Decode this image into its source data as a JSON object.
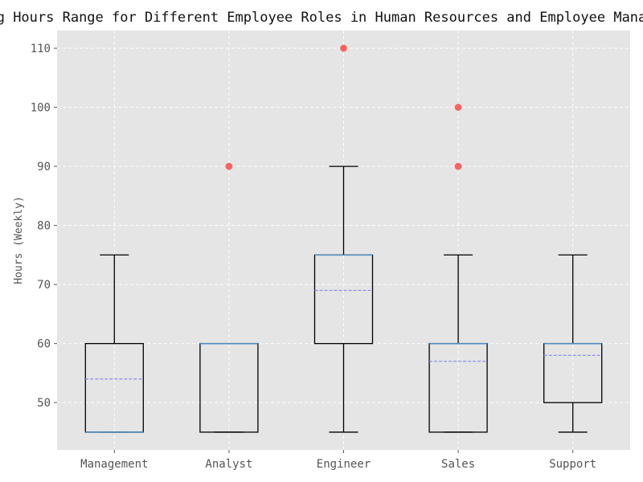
{
  "chart_data": {
    "type": "box",
    "title": "Working Hours Range for Different Employee Roles in Human Resources and Employee Management",
    "xlabel": "",
    "ylabel": "Hours (Weekly)",
    "ylim": [
      42,
      113
    ],
    "yticks": [
      50,
      60,
      70,
      80,
      90,
      100,
      110
    ],
    "grid": true,
    "categories": [
      "Management",
      "Analyst",
      "Engineer",
      "Sales",
      "Support"
    ],
    "boxes": [
      {
        "category": "Management",
        "whisker_low": 45,
        "q1": 45,
        "median": 45,
        "q3": 60,
        "whisker_high": 75,
        "mean": 54,
        "outliers": []
      },
      {
        "category": "Analyst",
        "whisker_low": 45,
        "q1": 45,
        "median": 60,
        "q3": 60,
        "whisker_high": 60,
        "mean": 60,
        "outliers": [
          90
        ]
      },
      {
        "category": "Engineer",
        "whisker_low": 45,
        "q1": 60,
        "median": 75,
        "q3": 75,
        "whisker_high": 90,
        "mean": 69,
        "outliers": [
          110
        ]
      },
      {
        "category": "Sales",
        "whisker_low": 45,
        "q1": 45,
        "median": 60,
        "q3": 60,
        "whisker_high": 75,
        "mean": 57,
        "outliers": [
          90,
          100
        ]
      },
      {
        "category": "Support",
        "whisker_low": 45,
        "q1": 50,
        "median": 60,
        "q3": 60,
        "whisker_high": 75,
        "mean": 58,
        "outliers": []
      }
    ],
    "colors": {
      "background": "#e5e5e5",
      "grid": "#ffffff",
      "box": "#000000",
      "median": "#4f8bbd",
      "mean": "#8f8ff0",
      "outlier": "#ff4b4b"
    }
  }
}
